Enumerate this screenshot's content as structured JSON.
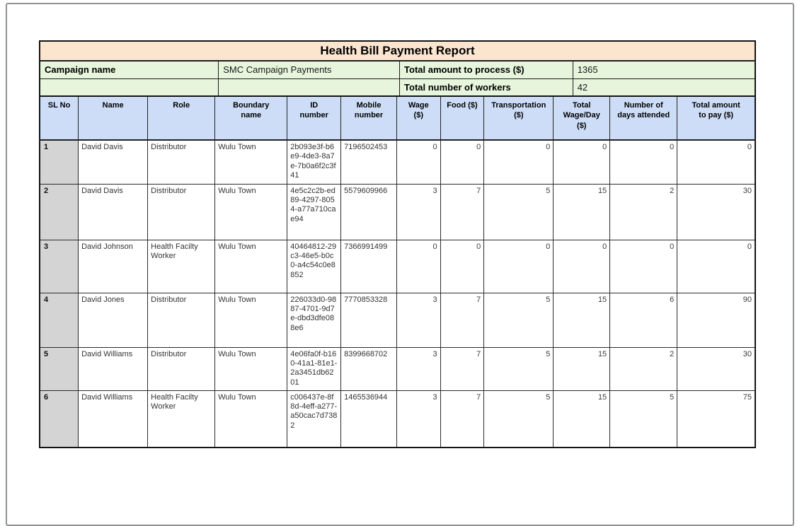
{
  "report": {
    "title": "Health Bill Payment Report",
    "meta": {
      "campaign_label": "Campaign name",
      "campaign_value": "SMC Campaign Payments",
      "total_amount_label": "Total amount to process ($)",
      "total_amount_value": "1365",
      "total_workers_label": "Total number of workers",
      "total_workers_value": "42"
    },
    "colors": {
      "title_bg": "#fbe5cf",
      "meta_bg": "#e6f5dc",
      "header_bg": "#cdddf7",
      "sl_bg": "#d4d4d4"
    },
    "table": {
      "columns": [
        "SL No",
        "Name",
        "Role",
        "Boundary\nname",
        "ID\nnumber",
        "Mobile\nnumber",
        "Wage\n($)",
        "Food ($)",
        "Transportation\n($)",
        "Total\nWage/Day\n($)",
        "Number of\ndays attended",
        "Total amount\nto pay ($)"
      ],
      "rows": [
        {
          "sl": "1",
          "name": "David Davis",
          "role": "Distributor",
          "boundary": "Wulu Town",
          "id": "2b093e3f-b6e9-4de3-8a7e-7b0a6f2c3f41",
          "mobile": "7196502453",
          "wage": "0",
          "food": "0",
          "transportation": "0",
          "total_wage_day": "0",
          "days_attended": "0",
          "total_pay": "0"
        },
        {
          "sl": "2",
          "name": "David Davis",
          "role": "Distributor",
          "boundary": "Wulu Town",
          "id": "4e5c2c2b-ed89-4297-8054-a77a710cae94",
          "mobile": "5579609966",
          "wage": "3",
          "food": "7",
          "transportation": "5",
          "total_wage_day": "15",
          "days_attended": "2",
          "total_pay": "30"
        },
        {
          "sl": "3",
          "name": "David Johnson",
          "role": "Health Facilty Worker",
          "boundary": "Wulu Town",
          "id": "40464812-29c3-46e5-b0c0-a4c54c0e8852",
          "mobile": "7366991499",
          "wage": "0",
          "food": "0",
          "transportation": "0",
          "total_wage_day": "0",
          "days_attended": "0",
          "total_pay": "0"
        },
        {
          "sl": "4",
          "name": "David Jones",
          "role": "Distributor",
          "boundary": "Wulu Town",
          "id": "226033d0-9887-4701-9d7e-dbd3dfe088e6",
          "mobile": "7770853328",
          "wage": "3",
          "food": "7",
          "transportation": "5",
          "total_wage_day": "15",
          "days_attended": "6",
          "total_pay": "90"
        },
        {
          "sl": "5",
          "name": "David Williams",
          "role": "Distributor",
          "boundary": "Wulu Town",
          "id": "4e06fa0f-b160-41a1-81e1-2a3451db6201",
          "mobile": "8399668702",
          "wage": "3",
          "food": "7",
          "transportation": "5",
          "total_wage_day": "15",
          "days_attended": "2",
          "total_pay": "30"
        },
        {
          "sl": "6",
          "name": "David Williams",
          "role": "Health Facilty Worker",
          "boundary": "Wulu Town",
          "id": "c006437e-8f8d-4eff-a277-a50cac7d7382",
          "mobile": "1465536944",
          "wage": "3",
          "food": "7",
          "transportation": "5",
          "total_wage_day": "15",
          "days_attended": "5",
          "total_pay": "75"
        }
      ]
    }
  }
}
